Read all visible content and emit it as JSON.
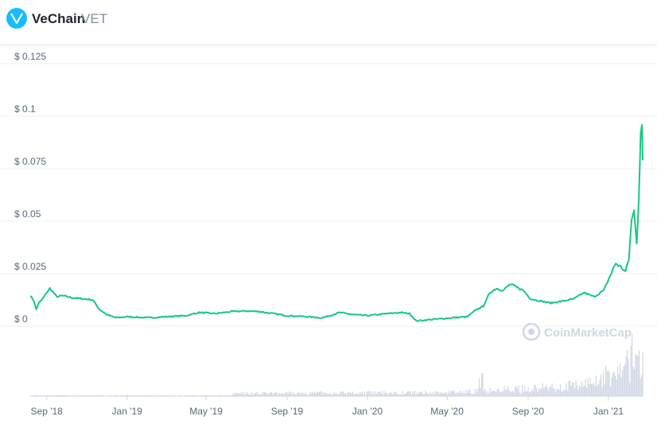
{
  "header": {
    "name": "VeChain",
    "symbol": "VET"
  },
  "watermark": "CoinMarketCap",
  "colors": {
    "price_line": "#16c784",
    "volume": "#cfd6e4",
    "grid": "#eff2f5",
    "logo": "#15bdff"
  },
  "chart_data": {
    "type": "line",
    "ylim": [
      0,
      0.125
    ],
    "y_ticks": [
      {
        "value": 0,
        "label": "$ 0"
      },
      {
        "value": 0.025,
        "label": "$ 0.025"
      },
      {
        "value": 0.05,
        "label": "$ 0.05"
      },
      {
        "value": 0.075,
        "label": "$ 0.075"
      },
      {
        "value": 0.1,
        "label": "$ 0.1"
      },
      {
        "value": 0.125,
        "label": "$ 0.125"
      }
    ],
    "x_range": [
      "2018-08-07",
      "2021-02-22"
    ],
    "x_ticks": [
      {
        "date": "2018-09-01",
        "label": "Sep '18"
      },
      {
        "date": "2019-01-01",
        "label": "Jan '19"
      },
      {
        "date": "2019-05-01",
        "label": "May '19"
      },
      {
        "date": "2019-09-01",
        "label": "Sep '19"
      },
      {
        "date": "2020-01-01",
        "label": "Jan '20"
      },
      {
        "date": "2020-05-01",
        "label": "May '20"
      },
      {
        "date": "2020-09-01",
        "label": "Sep '20"
      },
      {
        "date": "2021-01-01",
        "label": "Jan '21"
      }
    ],
    "series": [
      {
        "values": [
          [
            "2018-08-07",
            0.0145
          ],
          [
            "2018-08-12",
            0.0125
          ],
          [
            "2018-08-16",
            0.008
          ],
          [
            "2018-08-20",
            0.011
          ],
          [
            "2018-08-26",
            0.013
          ],
          [
            "2018-09-01",
            0.016
          ],
          [
            "2018-09-06",
            0.018
          ],
          [
            "2018-09-10",
            0.0165
          ],
          [
            "2018-09-16",
            0.014
          ],
          [
            "2018-09-25",
            0.0145
          ],
          [
            "2018-10-10",
            0.0135
          ],
          [
            "2018-10-28",
            0.013
          ],
          [
            "2018-11-10",
            0.0125
          ],
          [
            "2018-11-20",
            0.008
          ],
          [
            "2018-12-01",
            0.0055
          ],
          [
            "2018-12-15",
            0.004
          ],
          [
            "2019-01-01",
            0.0045
          ],
          [
            "2019-02-01",
            0.004
          ],
          [
            "2019-03-01",
            0.0045
          ],
          [
            "2019-04-01",
            0.005
          ],
          [
            "2019-04-20",
            0.0065
          ],
          [
            "2019-05-15",
            0.006
          ],
          [
            "2019-06-10",
            0.007
          ],
          [
            "2019-07-01",
            0.0072
          ],
          [
            "2019-07-20",
            0.007
          ],
          [
            "2019-08-10",
            0.006
          ],
          [
            "2019-09-01",
            0.005
          ],
          [
            "2019-10-01",
            0.0045
          ],
          [
            "2019-10-25",
            0.004
          ],
          [
            "2019-11-20",
            0.0065
          ],
          [
            "2019-12-10",
            0.0055
          ],
          [
            "2020-01-01",
            0.005
          ],
          [
            "2020-02-01",
            0.006
          ],
          [
            "2020-02-20",
            0.0065
          ],
          [
            "2020-03-05",
            0.006
          ],
          [
            "2020-03-15",
            0.0025
          ],
          [
            "2020-04-01",
            0.003
          ],
          [
            "2020-04-20",
            0.0035
          ],
          [
            "2020-05-10",
            0.004
          ],
          [
            "2020-06-01",
            0.0045
          ],
          [
            "2020-06-15",
            0.008
          ],
          [
            "2020-06-25",
            0.0095
          ],
          [
            "2020-07-05",
            0.016
          ],
          [
            "2020-07-15",
            0.018
          ],
          [
            "2020-07-25",
            0.017
          ],
          [
            "2020-08-05",
            0.02
          ],
          [
            "2020-08-15",
            0.0185
          ],
          [
            "2020-08-25",
            0.017
          ],
          [
            "2020-09-05",
            0.013
          ],
          [
            "2020-09-20",
            0.012
          ],
          [
            "2020-10-05",
            0.011
          ],
          [
            "2020-10-25",
            0.012
          ],
          [
            "2020-11-10",
            0.013
          ],
          [
            "2020-11-25",
            0.016
          ],
          [
            "2020-12-10",
            0.014
          ],
          [
            "2020-12-25",
            0.017
          ],
          [
            "2021-01-05",
            0.025
          ],
          [
            "2021-01-12",
            0.03
          ],
          [
            "2021-01-20",
            0.028
          ],
          [
            "2021-01-27",
            0.026
          ],
          [
            "2021-02-01",
            0.032
          ],
          [
            "2021-02-05",
            0.05
          ],
          [
            "2021-02-09",
            0.055
          ],
          [
            "2021-02-13",
            0.04
          ],
          [
            "2021-02-16",
            0.06
          ],
          [
            "2021-02-19",
            0.09
          ],
          [
            "2021-02-21",
            0.095
          ],
          [
            "2021-02-22",
            0.079
          ]
        ]
      }
    ]
  }
}
